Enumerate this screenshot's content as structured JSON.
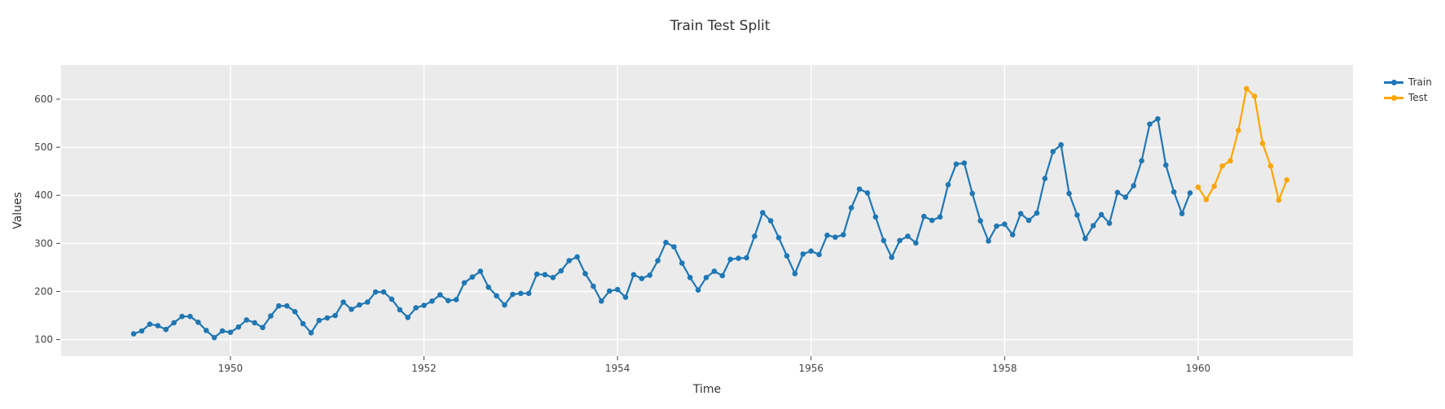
{
  "title": "Train Test Split",
  "axes": {
    "x_label": "Time",
    "y_label": "Values",
    "x_ticks": [
      1950,
      1952,
      1954,
      1956,
      1958,
      1960
    ],
    "y_ticks": [
      100,
      200,
      300,
      400,
      500,
      600
    ]
  },
  "colors": {
    "page_background": "#ffffff",
    "plot_background": "#ebebeb",
    "gridline": "#ffffff",
    "tick": "#444444",
    "text": "#333333",
    "train": "#1f77b4",
    "test": "#ffa500"
  },
  "legend": {
    "position": "top-right",
    "items": [
      "Train",
      "Test"
    ]
  },
  "chart_data": {
    "type": "line",
    "title": "Train Test Split",
    "xlabel": "Time",
    "ylabel": "Values",
    "mode": "lines+markers",
    "grid": true,
    "legend_position": "top-right",
    "x_axis_range": [
      1948.25,
      1961.6
    ],
    "y_axis_range": [
      65.5,
      671
    ],
    "x_ticks": [
      1950,
      1952,
      1954,
      1956,
      1958,
      1960
    ],
    "y_ticks": [
      100,
      200,
      300,
      400,
      500,
      600
    ],
    "x_unit": "monthly time series, x = start_year + month_index/12",
    "series": [
      {
        "name": "Train",
        "color": "#1f77b4",
        "start": "1949-01",
        "freq": "monthly",
        "values": [
          112,
          118,
          132,
          129,
          121,
          135,
          148,
          148,
          136,
          119,
          104,
          118,
          115,
          126,
          141,
          135,
          125,
          149,
          170,
          170,
          158,
          133,
          114,
          140,
          145,
          150,
          178,
          163,
          172,
          178,
          199,
          199,
          184,
          162,
          146,
          166,
          171,
          180,
          193,
          181,
          183,
          218,
          230,
          242,
          209,
          191,
          172,
          194,
          196,
          196,
          236,
          235,
          229,
          243,
          264,
          272,
          237,
          211,
          180,
          201,
          204,
          188,
          235,
          227,
          234,
          264,
          302,
          293,
          259,
          229,
          203,
          229,
          242,
          233,
          267,
          269,
          270,
          315,
          364,
          347,
          312,
          274,
          237,
          278,
          284,
          277,
          317,
          313,
          318,
          374,
          413,
          405,
          355,
          306,
          271,
          306,
          315,
          301,
          356,
          348,
          355,
          422,
          465,
          467,
          404,
          347,
          305,
          336,
          340,
          318,
          362,
          348,
          363,
          435,
          491,
          505,
          404,
          359,
          310,
          337,
          360,
          342,
          406,
          396,
          420,
          472,
          548,
          559,
          463,
          407,
          362,
          405
        ]
      },
      {
        "name": "Test",
        "color": "#ffa500",
        "start": "1960-01",
        "freq": "monthly",
        "values": [
          417,
          391,
          419,
          461,
          472,
          535,
          622,
          606,
          508,
          461,
          390,
          432
        ]
      }
    ]
  }
}
